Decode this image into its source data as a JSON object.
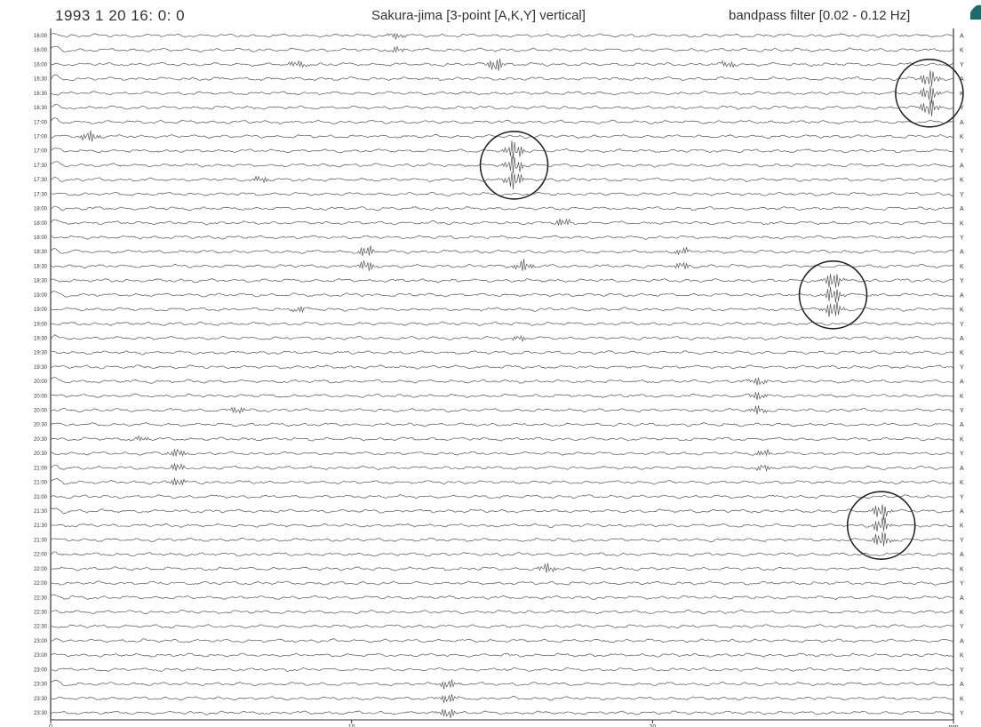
{
  "header": {
    "date": "1993  1 20 16: 0: 0",
    "title": "Sakura-jima [3-point [A,K,Y] vertical]",
    "filter": "bandpass filter [0.02 - 0.12 Hz]"
  },
  "chart_data": {
    "type": "line",
    "title": "Sakura-jima [3-point [A,K,Y] vertical]",
    "subtitle": "bandpass filter [0.02 - 0.12 Hz]",
    "start_time": "1993  1 20 16: 0: 0",
    "xlabel": "min",
    "xlim": [
      0,
      30
    ],
    "x_ticks": [
      {
        "value": 0,
        "label": "0"
      },
      {
        "value": 10,
        "label": "10"
      },
      {
        "value": 20,
        "label": "20"
      },
      {
        "value": 30,
        "label": "min"
      }
    ],
    "station_cycle": [
      "A",
      "K",
      "Y"
    ],
    "row_times": [
      "16:00",
      "16:00",
      "16:00",
      "16:30",
      "16:30",
      "16:30",
      "17:00",
      "17:00",
      "17:00",
      "17:30",
      "17:30",
      "17:30",
      "18:00",
      "18:00",
      "18:00",
      "18:30",
      "18:30",
      "18:30",
      "19:00",
      "19:00",
      "19:00",
      "19:30",
      "19:30",
      "19:30",
      "20:00",
      "20:00",
      "20:00",
      "20:30",
      "20:30",
      "20:30",
      "21:00",
      "21:00",
      "21:00",
      "21:30",
      "21:30",
      "21:30",
      "22:00",
      "22:00",
      "22:00",
      "22:30",
      "22:30",
      "22:30",
      "23:00",
      "23:00",
      "23:00",
      "23:30",
      "23:30",
      "23:30"
    ],
    "events": [
      {
        "rows": [
          0,
          1
        ],
        "center_min": 11.5,
        "amplitude": 0.5
      },
      {
        "rows": [
          2
        ],
        "center_min": 8.2,
        "amplitude": 0.6
      },
      {
        "rows": [
          2
        ],
        "center_min": 14.8,
        "amplitude": 1.1
      },
      {
        "rows": [
          2
        ],
        "center_min": 22.5,
        "amplitude": 0.5
      },
      {
        "rows": [
          3,
          4,
          5
        ],
        "center_min": 29.2,
        "amplitude": 1.5,
        "circled": true
      },
      {
        "rows": [
          7
        ],
        "center_min": 1.3,
        "amplitude": 0.9
      },
      {
        "rows": [
          8,
          9,
          10
        ],
        "center_min": 15.4,
        "amplitude": 1.6,
        "circled": true
      },
      {
        "rows": [
          10
        ],
        "center_min": 7.0,
        "amplitude": 0.5
      },
      {
        "rows": [
          13
        ],
        "center_min": 17.0,
        "amplitude": 0.7
      },
      {
        "rows": [
          15,
          16
        ],
        "center_min": 10.5,
        "amplitude": 0.9
      },
      {
        "rows": [
          15,
          16
        ],
        "center_min": 21.0,
        "amplitude": 0.6
      },
      {
        "rows": [
          16
        ],
        "center_min": 15.7,
        "amplitude": 1.0
      },
      {
        "rows": [
          17,
          18,
          19
        ],
        "center_min": 26.0,
        "amplitude": 1.5,
        "circled": true
      },
      {
        "rows": [
          19
        ],
        "center_min": 8.3,
        "amplitude": 0.5
      },
      {
        "rows": [
          21
        ],
        "center_min": 15.6,
        "amplitude": 0.5
      },
      {
        "rows": [
          24,
          25,
          26
        ],
        "center_min": 23.5,
        "amplitude": 0.7
      },
      {
        "rows": [
          26
        ],
        "center_min": 6.2,
        "amplitude": 0.5
      },
      {
        "rows": [
          28
        ],
        "center_min": 3.0,
        "amplitude": 0.4
      },
      {
        "rows": [
          29,
          30,
          31
        ],
        "center_min": 4.2,
        "amplitude": 0.7
      },
      {
        "rows": [
          29,
          30
        ],
        "center_min": 23.7,
        "amplitude": 0.5
      },
      {
        "rows": [
          33,
          34,
          35
        ],
        "center_min": 27.6,
        "amplitude": 1.4,
        "circled": true
      },
      {
        "rows": [
          37
        ],
        "center_min": 16.5,
        "amplitude": 0.8
      },
      {
        "rows": [
          45,
          46,
          47
        ],
        "center_min": 13.2,
        "amplitude": 0.8
      }
    ],
    "grid": false,
    "colors": {
      "trace": "#555555",
      "axis": "#333333",
      "text": "#333333",
      "circle": "#222222"
    }
  }
}
